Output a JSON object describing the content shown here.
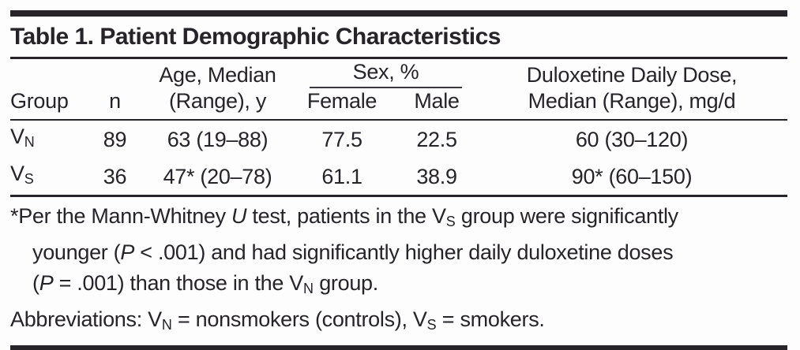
{
  "page": {
    "background": "#fdfdfd",
    "ink_color": "#262329"
  },
  "title": "Table 1. Patient Demographic Characteristics",
  "header": {
    "group": "Group",
    "n": "n",
    "age_line1": "Age, Median",
    "age_line2": "(Range), y",
    "sex": "Sex, %",
    "female": "Female",
    "male": "Male",
    "dose_line1": "Duloxetine Daily Dose,",
    "dose_line2": "Median (Range), mg/d"
  },
  "rows": [
    {
      "group_base": "V",
      "group_sub": "N",
      "n": "89",
      "age": "63 (19–88)",
      "female": "77.5",
      "male": "22.5",
      "dose": "60 (30–120)"
    },
    {
      "group_base": "V",
      "group_sub": "S",
      "n": "36",
      "age": "47* (20–78)",
      "female": "61.1",
      "male": "38.9",
      "dose": "90* (60–150)"
    }
  ],
  "footnotes": {
    "line1": {
      "a": "*Per the Mann-Whitney ",
      "u": "U",
      "b": " test, patients in the V",
      "sub": "S",
      "c": " group were significantly"
    },
    "line2": {
      "a": "younger (",
      "p": "P",
      "b": " < .001) and had significantly higher daily duloxetine doses"
    },
    "line3": {
      "a": "(",
      "p": "P",
      "b": " = .001) than those in the V",
      "sub": "N",
      "c": " group."
    },
    "line4": {
      "a": "Abbreviations: V",
      "sub1": "N",
      "b": " = nonsmokers (controls), V",
      "sub2": "S",
      "c": " = smokers."
    }
  }
}
